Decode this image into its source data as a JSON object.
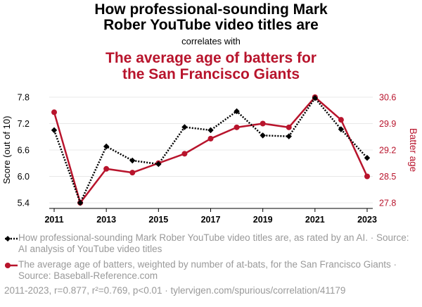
{
  "title": {
    "line1": "How professional-sounding Mark",
    "line2": "Rober YouTube video titles are",
    "correlates": "correlates with",
    "line3": "The average age of batters for",
    "line4": "the San Francisco Giants"
  },
  "colors": {
    "series1": "#000000",
    "series2": "#b8142c",
    "muted": "#999999"
  },
  "chart_data": {
    "type": "line",
    "x": [
      2011,
      2012,
      2013,
      2014,
      2015,
      2016,
      2017,
      2018,
      2019,
      2020,
      2021,
      2022,
      2023
    ],
    "x_ticks": [
      "2011",
      "2013",
      "2015",
      "2017",
      "2019",
      "2021",
      "2023"
    ],
    "series": [
      {
        "name": "How professional-sounding Mark Rober YouTube video titles are",
        "axis": "left",
        "style": "dotted, diamond markers",
        "values": [
          7.05,
          5.4,
          6.68,
          6.36,
          6.28,
          7.12,
          7.05,
          7.48,
          6.93,
          6.91,
          7.78,
          7.07,
          6.42
        ]
      },
      {
        "name": "The average age of batters for the San Francisco Giants",
        "axis": "right",
        "style": "solid, circle markers",
        "values": [
          30.2,
          27.8,
          28.7,
          28.6,
          28.85,
          29.1,
          29.5,
          29.8,
          29.9,
          29.8,
          30.6,
          30.0,
          28.5
        ]
      }
    ],
    "left_axis": {
      "label": "Score (out of 10)",
      "ticks": [
        "5.4",
        "6.0",
        "6.6",
        "7.2",
        "7.8"
      ],
      "range": [
        5.4,
        7.8
      ]
    },
    "right_axis": {
      "label": "Batter age",
      "ticks": [
        "27.8",
        "28.5",
        "29.2",
        "29.9",
        "30.6"
      ],
      "range": [
        27.8,
        30.6
      ]
    },
    "grid": true
  },
  "legend": {
    "item1": "How professional-sounding Mark Rober YouTube video titles are, as rated by an AI. · Source: AI analysis of YouTube video titles",
    "item2": "The average age of batters, weighted by number of at-bats, for the San Francisco Giants · Source: Baseball-Reference.com"
  },
  "footer": "2011-2023, r=0.877, r²=0.769, p<0.01 · tylervigen.com/spurious/correlation/41179"
}
